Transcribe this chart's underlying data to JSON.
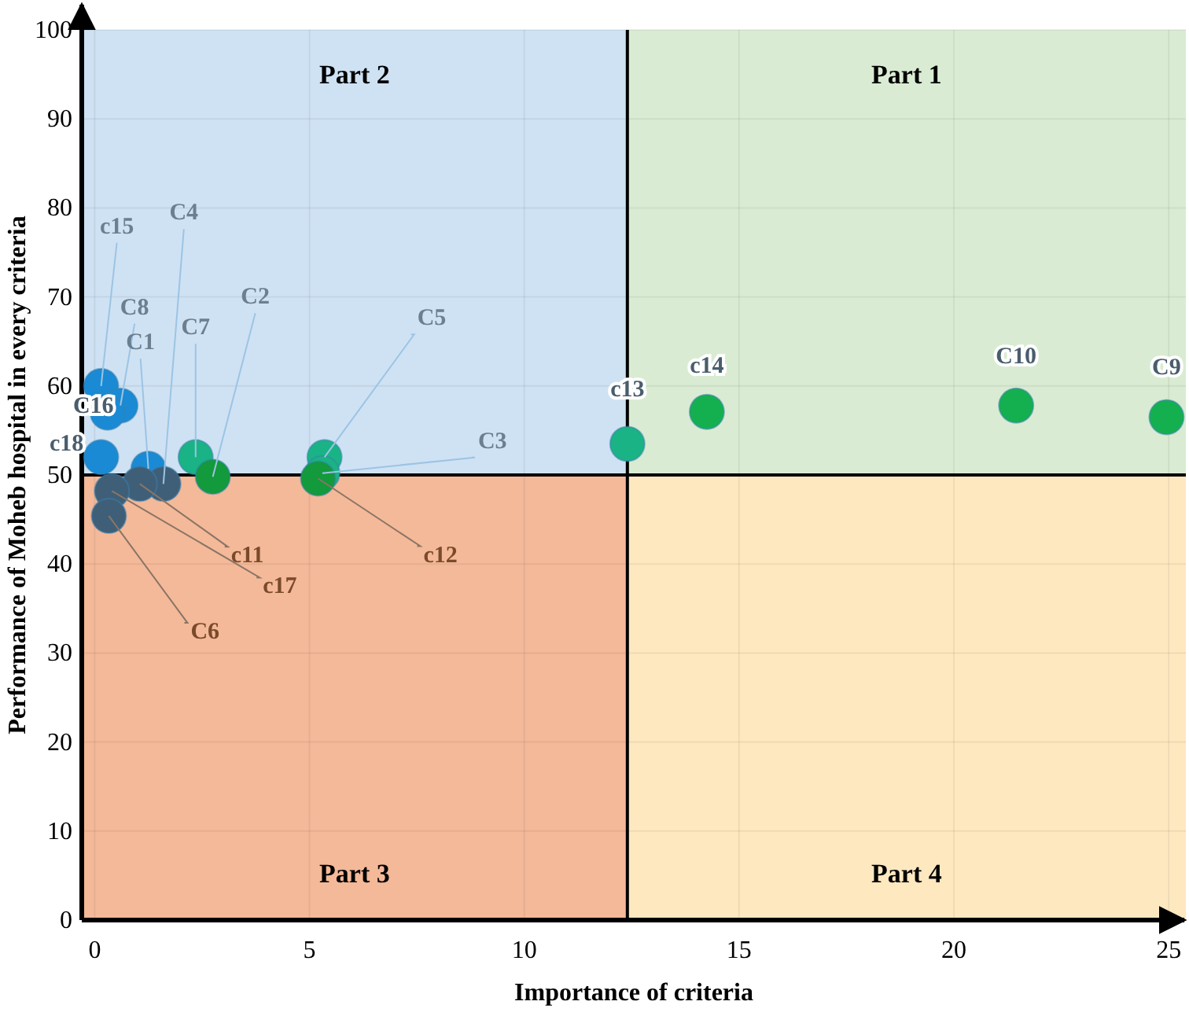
{
  "chart_data": {
    "type": "scatter",
    "xlabel": "Importance of criteria",
    "ylabel": "Performance of Moheb hospital in every criteria",
    "xlim": [
      -0.3,
      25.4
    ],
    "xticks": [
      0,
      5,
      10,
      15,
      20,
      25
    ],
    "ylim": [
      0,
      100
    ],
    "yticks": [
      0,
      10,
      20,
      30,
      40,
      50,
      60,
      70,
      80,
      90,
      100
    ],
    "grid": true,
    "marker": "circle",
    "series": [
      {
        "x": [
          0.15,
          0.6,
          0.3,
          0.15,
          1.25,
          1.6,
          2.35,
          2.75,
          5.35,
          5.3,
          5.2,
          1.05,
          0.4,
          0.33,
          12.4,
          14.25,
          21.45,
          24.95
        ],
        "values": [
          60,
          57.8,
          57,
          52,
          50.7,
          49,
          52,
          49.8,
          52,
          50.2,
          49.6,
          49,
          48.2,
          45.4,
          53.5,
          57.1,
          57.8,
          56.5
        ],
        "colors": [
          "#1a8ad4",
          "#1a8ad4",
          "#1a8ad4",
          "#1a8ad4",
          "#1a8ad4",
          "#3f5f78",
          "#1ab385",
          "#129a3c",
          "#1ab385",
          "#1ab385",
          "#129a3c",
          "#3f5f78",
          "#3f5f78",
          "#3f5f78",
          "#1ab385",
          "#14b050",
          "#14b050",
          "#14b050"
        ],
        "value_labels": [
          "c15",
          "C8",
          "C16",
          "c18",
          "C1",
          "C4",
          "C7",
          "C2",
          "C5",
          "C3",
          "c12",
          "c11",
          "c17",
          "C6",
          "c13",
          "c14",
          "C10",
          "C9"
        ]
      }
    ],
    "ref_lines": [
      {
        "axis": "x",
        "value": 12.4,
        "color": "#000000"
      },
      {
        "axis": "y",
        "value": 50,
        "color": "#000000"
      }
    ],
    "annotations": [
      "Part 1",
      "Part 2",
      "Part 3",
      "Part 4"
    ]
  }
}
